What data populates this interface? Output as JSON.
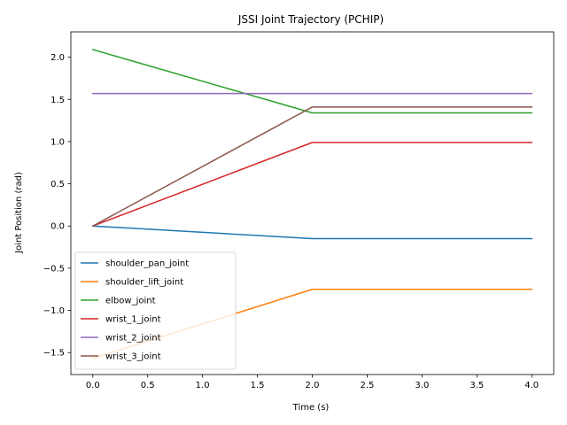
{
  "chart_data": {
    "type": "line",
    "title": "JSSI Joint Trajectory (PCHIP)",
    "xlabel": "Time (s)",
    "ylabel": "Joint Position (rad)",
    "xlim": [
      -0.2,
      4.2
    ],
    "ylim": [
      -1.76,
      2.3
    ],
    "xticks": [
      0.0,
      0.5,
      1.0,
      1.5,
      2.0,
      2.5,
      3.0,
      3.5,
      4.0
    ],
    "xtick_labels": [
      "0.0",
      "0.5",
      "1.0",
      "1.5",
      "2.0",
      "2.5",
      "3.0",
      "3.5",
      "4.0"
    ],
    "yticks": [
      -1.5,
      -1.0,
      -0.5,
      0.0,
      0.5,
      1.0,
      1.5,
      2.0
    ],
    "ytick_labels": [
      "−1.5",
      "−1.0",
      "−0.5",
      "0.0",
      "0.5",
      "1.0",
      "1.5",
      "2.0"
    ],
    "grid": false,
    "legend_position": "lower-left",
    "series": [
      {
        "name": "shoulder_pan_joint",
        "color": "#1f77b4",
        "x": [
          0.0,
          2.0,
          4.0
        ],
        "values": [
          0.0,
          -0.15,
          -0.15
        ]
      },
      {
        "name": "shoulder_lift_joint",
        "color": "#ff7f0e",
        "x": [
          0.0,
          2.0,
          4.0
        ],
        "values": [
          -1.57,
          -0.75,
          -0.75
        ]
      },
      {
        "name": "elbow_joint",
        "color": "#2ca02c",
        "x": [
          0.0,
          2.0,
          4.0
        ],
        "values": [
          2.09,
          1.34,
          1.34
        ]
      },
      {
        "name": "wrist_1_joint",
        "color": "#d62728",
        "x": [
          0.0,
          2.0,
          4.0
        ],
        "values": [
          0.0,
          0.99,
          0.99
        ]
      },
      {
        "name": "wrist_2_joint",
        "color": "#9467bd",
        "x": [
          0.0,
          2.0,
          4.0
        ],
        "values": [
          1.57,
          1.57,
          1.57
        ]
      },
      {
        "name": "wrist_3_joint",
        "color": "#8c564b",
        "x": [
          0.0,
          2.0,
          4.0
        ],
        "values": [
          0.0,
          1.41,
          1.41
        ]
      }
    ]
  }
}
